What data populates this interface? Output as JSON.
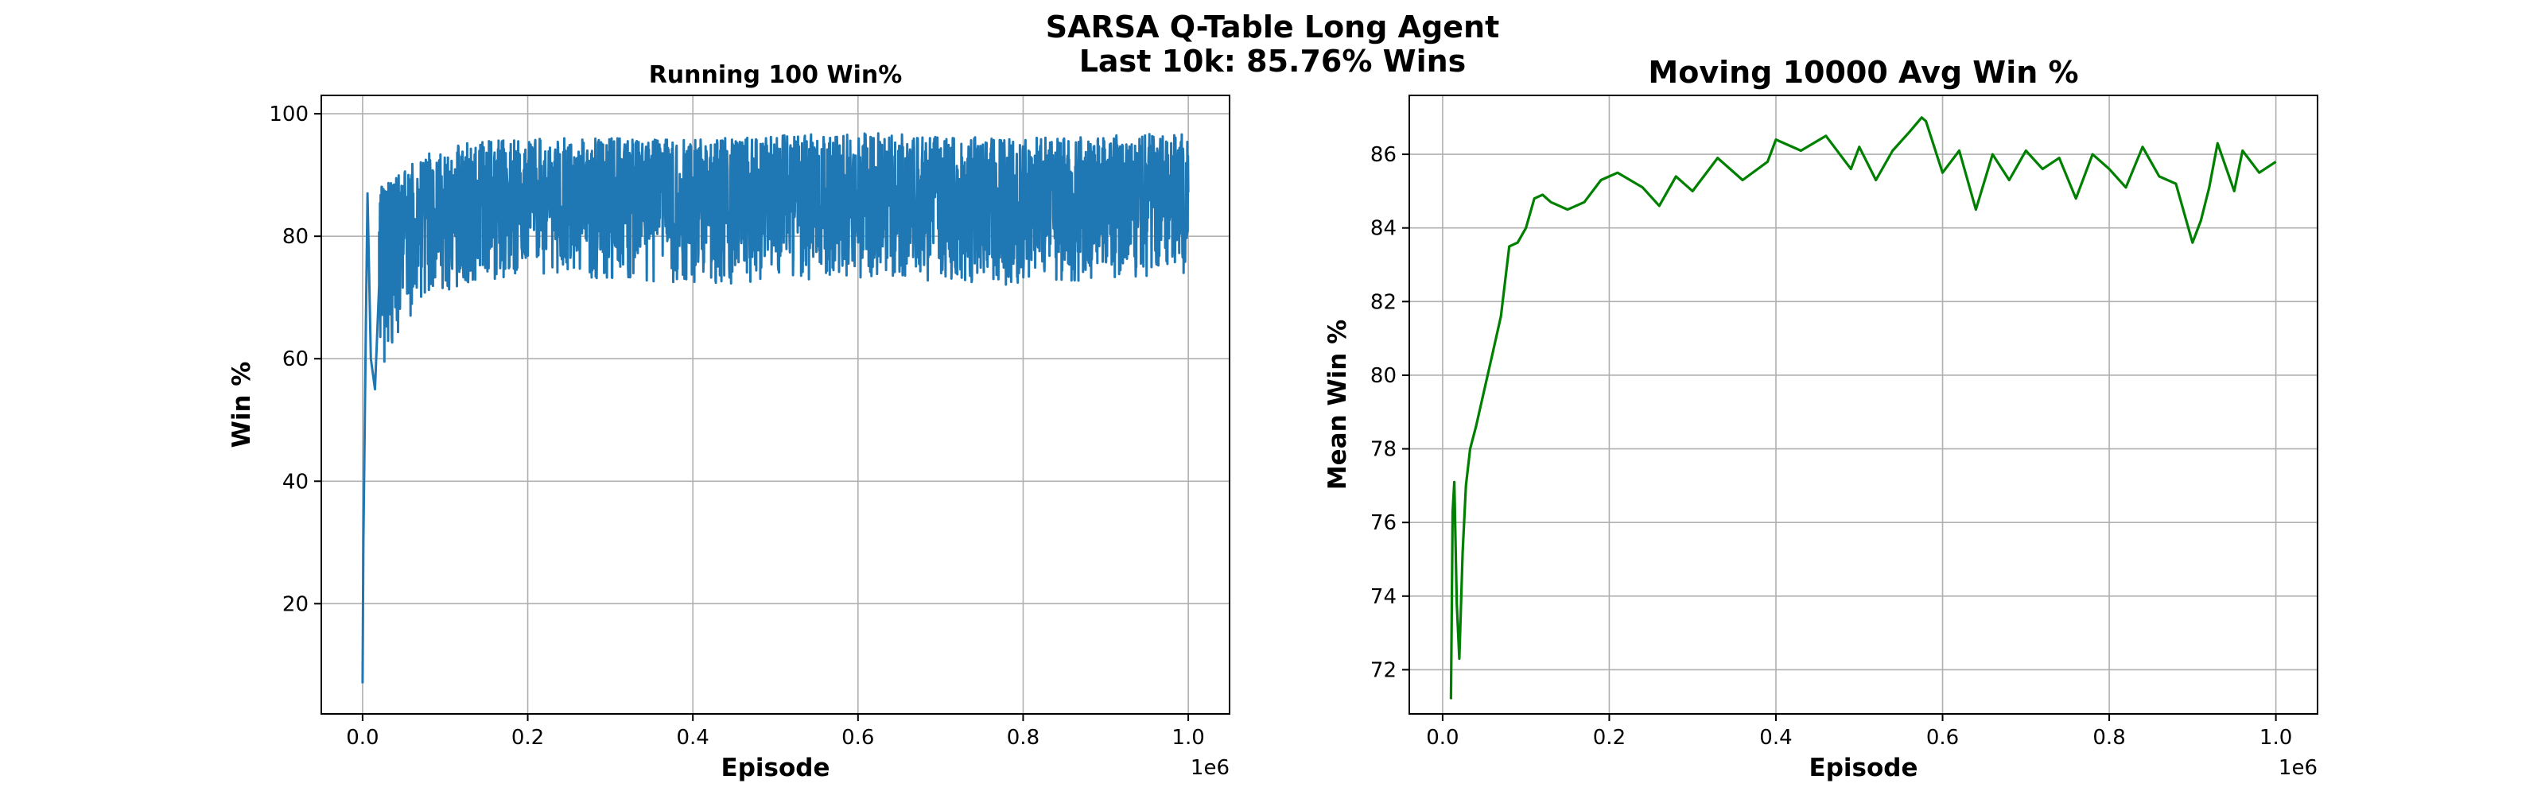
{
  "figure": {
    "suptitle_line1": "SARSA Q-Table Long Agent",
    "suptitle_line2": "Last 10k: 85.76% Wins"
  },
  "chart_data": [
    {
      "type": "line",
      "title": "Running 100 Win%",
      "xlabel": "Episode",
      "ylabel": "Win %",
      "x_offset_label": "1e6",
      "xlim": [
        -50000,
        1050000
      ],
      "ylim": [
        2,
        103
      ],
      "xticks": [
        0,
        200000,
        400000,
        600000,
        800000,
        1000000
      ],
      "xtick_labels": [
        "0.0",
        "0.2",
        "0.4",
        "0.6",
        "0.8",
        "1.0"
      ],
      "yticks": [
        20,
        40,
        60,
        80,
        100
      ],
      "ytick_labels": [
        "20",
        "40",
        "60",
        "80",
        "100"
      ],
      "grid": true,
      "color": "#1f77b4",
      "series": [
        {
          "x_range": [
            0,
            1000000
          ],
          "start_points": [
            [
              0,
              7
            ],
            [
              1000,
              30
            ],
            [
              2000,
              42
            ],
            [
              4000,
              66
            ],
            [
              6000,
              87
            ],
            [
              10000,
              60
            ],
            [
              15000,
              55
            ],
            [
              20000,
              72
            ]
          ],
          "envelope": [
            {
              "x": 20000,
              "lo": 57,
              "hi": 88
            },
            {
              "x": 60000,
              "lo": 66,
              "hi": 92
            },
            {
              "x": 100000,
              "lo": 71,
              "hi": 95
            },
            {
              "x": 200000,
              "lo": 74,
              "hi": 96
            },
            {
              "x": 400000,
              "lo": 72,
              "hi": 96
            },
            {
              "x": 600000,
              "lo": 73,
              "hi": 97
            },
            {
              "x": 800000,
              "lo": 72,
              "hi": 96
            },
            {
              "x": 1000000,
              "lo": 74,
              "hi": 97
            }
          ],
          "mean_center": 85
        }
      ]
    },
    {
      "type": "line",
      "title": "Moving 10000 Avg Win %",
      "xlabel": "Episode",
      "ylabel": "Mean Win %",
      "x_offset_label": "1e6",
      "xlim": [
        -40000,
        1050000
      ],
      "ylim": [
        70.8,
        87.6
      ],
      "xticks": [
        0,
        200000,
        400000,
        600000,
        800000,
        1000000
      ],
      "xtick_labels": [
        "0.0",
        "0.2",
        "0.4",
        "0.6",
        "0.8",
        "1.0"
      ],
      "yticks": [
        72,
        74,
        76,
        78,
        80,
        82,
        84,
        86
      ],
      "ytick_labels": [
        "72",
        "74",
        "76",
        "78",
        "80",
        "82",
        "84",
        "86"
      ],
      "grid": true,
      "color": "#008000",
      "series": [
        {
          "x": [
            10000,
            12000,
            14000,
            17000,
            20000,
            24000,
            28000,
            33000,
            40000,
            50000,
            60000,
            70000,
            80000,
            90000,
            100000,
            110000,
            120000,
            130000,
            150000,
            170000,
            190000,
            210000,
            240000,
            260000,
            280000,
            300000,
            330000,
            360000,
            390000,
            400000,
            430000,
            460000,
            490000,
            500000,
            520000,
            540000,
            560000,
            575000,
            580000,
            600000,
            620000,
            640000,
            660000,
            680000,
            700000,
            720000,
            740000,
            760000,
            780000,
            800000,
            820000,
            840000,
            860000,
            880000,
            900000,
            910000,
            920000,
            930000,
            950000,
            960000,
            980000,
            1000000
          ],
          "values": [
            71.2,
            76.3,
            77.1,
            73.8,
            72.3,
            75.2,
            77.0,
            78.0,
            78.6,
            79.6,
            80.6,
            81.6,
            83.5,
            83.6,
            84.0,
            84.8,
            84.9,
            84.7,
            84.5,
            84.7,
            85.3,
            85.5,
            85.1,
            84.6,
            85.4,
            85.0,
            85.9,
            85.3,
            85.8,
            86.4,
            86.1,
            86.5,
            85.6,
            86.2,
            85.3,
            86.1,
            86.6,
            87.0,
            86.9,
            85.5,
            86.1,
            84.5,
            86.0,
            85.3,
            86.1,
            85.6,
            85.9,
            84.8,
            86.0,
            85.6,
            85.1,
            86.2,
            85.4,
            85.2,
            83.6,
            84.2,
            85.1,
            86.3,
            85.0,
            86.1,
            85.5,
            85.8
          ]
        }
      ]
    }
  ]
}
